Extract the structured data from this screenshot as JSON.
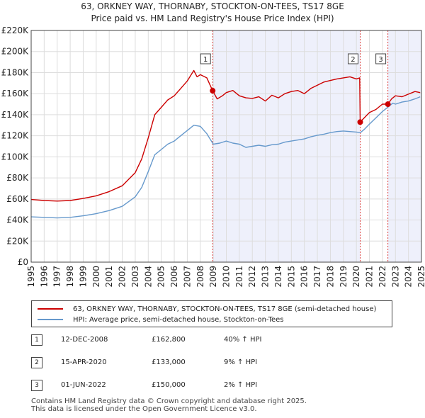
{
  "title_line1": "63, ORKNEY WAY, THORNABY, STOCKTON-ON-TEES, TS17 8GE",
  "title_line2": "Price paid vs. HM Land Registry's House Price Index (HPI)",
  "chart_data": {
    "type": "line",
    "xlim": [
      1995,
      2025
    ],
    "ylim": [
      0,
      220000
    ],
    "x_ticks": [
      "1995",
      "1996",
      "1997",
      "1998",
      "1999",
      "2000",
      "2001",
      "2002",
      "2003",
      "2004",
      "2005",
      "2006",
      "2007",
      "2008",
      "2009",
      "2010",
      "2011",
      "2012",
      "2013",
      "2014",
      "2015",
      "2016",
      "2017",
      "2018",
      "2019",
      "2020",
      "2021",
      "2022",
      "2023",
      "2024",
      "2025"
    ],
    "y_ticks": [
      {
        "value": 0,
        "label": "£0"
      },
      {
        "value": 20000,
        "label": "£20K"
      },
      {
        "value": 40000,
        "label": "£40K"
      },
      {
        "value": 60000,
        "label": "£60K"
      },
      {
        "value": 80000,
        "label": "£80K"
      },
      {
        "value": 100000,
        "label": "£100K"
      },
      {
        "value": 120000,
        "label": "£120K"
      },
      {
        "value": 140000,
        "label": "£140K"
      },
      {
        "value": 160000,
        "label": "£160K"
      },
      {
        "value": 180000,
        "label": "£180K"
      },
      {
        "value": 200000,
        "label": "£200K"
      },
      {
        "value": 220000,
        "label": "£220K"
      }
    ],
    "series": [
      {
        "name": "63, ORKNEY WAY, THORNABY, STOCKTON-ON-TEES, TS17 8GE (semi-detached house)",
        "color": "#cc0000",
        "points": [
          [
            1995.0,
            59500
          ],
          [
            1996.0,
            58500
          ],
          [
            1997.0,
            58000
          ],
          [
            1998.0,
            58500
          ],
          [
            1999.0,
            60500
          ],
          [
            2000.0,
            63000
          ],
          [
            2001.0,
            67000
          ],
          [
            2002.0,
            72500
          ],
          [
            2003.0,
            85000
          ],
          [
            2003.5,
            98000
          ],
          [
            2004.0,
            118000
          ],
          [
            2004.5,
            140000
          ],
          [
            2005.0,
            147000
          ],
          [
            2005.5,
            154000
          ],
          [
            2006.0,
            158000
          ],
          [
            2006.5,
            165000
          ],
          [
            2007.0,
            172000
          ],
          [
            2007.5,
            182000
          ],
          [
            2007.75,
            176000
          ],
          [
            2008.0,
            178000
          ],
          [
            2008.5,
            175000
          ],
          [
            2008.95,
            162800
          ],
          [
            2009.3,
            155000
          ],
          [
            2009.7,
            158000
          ],
          [
            2010.0,
            161000
          ],
          [
            2010.5,
            163000
          ],
          [
            2011.0,
            158000
          ],
          [
            2011.5,
            156000
          ],
          [
            2012.0,
            155500
          ],
          [
            2012.5,
            157000
          ],
          [
            2013.0,
            153000
          ],
          [
            2013.5,
            158500
          ],
          [
            2014.0,
            156000
          ],
          [
            2014.5,
            160000
          ],
          [
            2015.0,
            162000
          ],
          [
            2015.5,
            163000
          ],
          [
            2016.0,
            160000
          ],
          [
            2016.5,
            165000
          ],
          [
            2017.0,
            168000
          ],
          [
            2017.5,
            171000
          ],
          [
            2018.0,
            172500
          ],
          [
            2018.5,
            174000
          ],
          [
            2019.0,
            175000
          ],
          [
            2019.5,
            176000
          ],
          [
            2020.0,
            174000
          ],
          [
            2020.25,
            175000
          ],
          [
            2020.29,
            133000
          ],
          [
            2020.6,
            137000
          ],
          [
            2021.0,
            142000
          ],
          [
            2021.5,
            145000
          ],
          [
            2022.0,
            150000
          ],
          [
            2022.42,
            150000
          ],
          [
            2022.7,
            155000
          ],
          [
            2023.0,
            158000
          ],
          [
            2023.5,
            157000
          ],
          [
            2024.0,
            159500
          ],
          [
            2024.5,
            162000
          ],
          [
            2024.9,
            161000
          ]
        ]
      },
      {
        "name": "HPI: Average price, semi-detached house, Stockton-on-Tees",
        "color": "#6699cc",
        "points": [
          [
            1995.0,
            43000
          ],
          [
            1996.0,
            42500
          ],
          [
            1997.0,
            42000
          ],
          [
            1998.0,
            42500
          ],
          [
            1999.0,
            44000
          ],
          [
            2000.0,
            46000
          ],
          [
            2001.0,
            49000
          ],
          [
            2002.0,
            53000
          ],
          [
            2003.0,
            62000
          ],
          [
            2003.5,
            71000
          ],
          [
            2004.0,
            86000
          ],
          [
            2004.5,
            102000
          ],
          [
            2005.0,
            107000
          ],
          [
            2005.5,
            112000
          ],
          [
            2006.0,
            115000
          ],
          [
            2006.5,
            120000
          ],
          [
            2007.0,
            125000
          ],
          [
            2007.5,
            130000
          ],
          [
            2008.0,
            129000
          ],
          [
            2008.5,
            122000
          ],
          [
            2009.0,
            112000
          ],
          [
            2009.5,
            113000
          ],
          [
            2010.0,
            115000
          ],
          [
            2010.5,
            113000
          ],
          [
            2011.0,
            112000
          ],
          [
            2011.5,
            109000
          ],
          [
            2012.0,
            110000
          ],
          [
            2012.5,
            111000
          ],
          [
            2013.0,
            110000
          ],
          [
            2013.5,
            111500
          ],
          [
            2014.0,
            112000
          ],
          [
            2014.5,
            114000
          ],
          [
            2015.0,
            115000
          ],
          [
            2015.5,
            116000
          ],
          [
            2016.0,
            117000
          ],
          [
            2016.5,
            119000
          ],
          [
            2017.0,
            120500
          ],
          [
            2017.5,
            121500
          ],
          [
            2018.0,
            123000
          ],
          [
            2018.5,
            124000
          ],
          [
            2019.0,
            124500
          ],
          [
            2019.5,
            124000
          ],
          [
            2020.0,
            123500
          ],
          [
            2020.3,
            123000
          ],
          [
            2020.6,
            126000
          ],
          [
            2021.0,
            131000
          ],
          [
            2021.5,
            137000
          ],
          [
            2022.0,
            143000
          ],
          [
            2022.4,
            147000
          ],
          [
            2022.8,
            151000
          ],
          [
            2023.0,
            150000
          ],
          [
            2023.5,
            152000
          ],
          [
            2024.0,
            153000
          ],
          [
            2024.5,
            155000
          ],
          [
            2024.9,
            157000
          ]
        ]
      }
    ],
    "sales": [
      {
        "num": "1",
        "x": 2008.95,
        "y": 162800,
        "date": "12-DEC-2008",
        "price": "£162,800",
        "delta": "40% ↑ HPI"
      },
      {
        "num": "2",
        "x": 2020.29,
        "y": 133000,
        "date": "15-APR-2020",
        "price": "£133,000",
        "delta": "9% ↑ HPI"
      },
      {
        "num": "3",
        "x": 2022.42,
        "y": 150000,
        "date": "01-JUN-2022",
        "price": "£150,000",
        "delta": "2% ↑ HPI"
      }
    ],
    "shading": [
      [
        2008.95,
        2020.29
      ],
      [
        2022.42,
        2025
      ]
    ],
    "colors": {
      "grid": "#dddddd",
      "shade": "#eef0fb",
      "vline": "#dd4444",
      "axis": "#444444",
      "plot_bg": "#ffffff"
    }
  },
  "legend": {
    "property_label": "63, ORKNEY WAY, THORNABY, STOCKTON-ON-TEES, TS17 8GE (semi-detached house)",
    "hpi_label": "HPI: Average price, semi-detached house, Stockton-on-Tees"
  },
  "footer": {
    "line1": "Contains HM Land Registry data © Crown copyright and database right 2025.",
    "line2": "This data is licensed under the Open Government Licence v3.0."
  }
}
